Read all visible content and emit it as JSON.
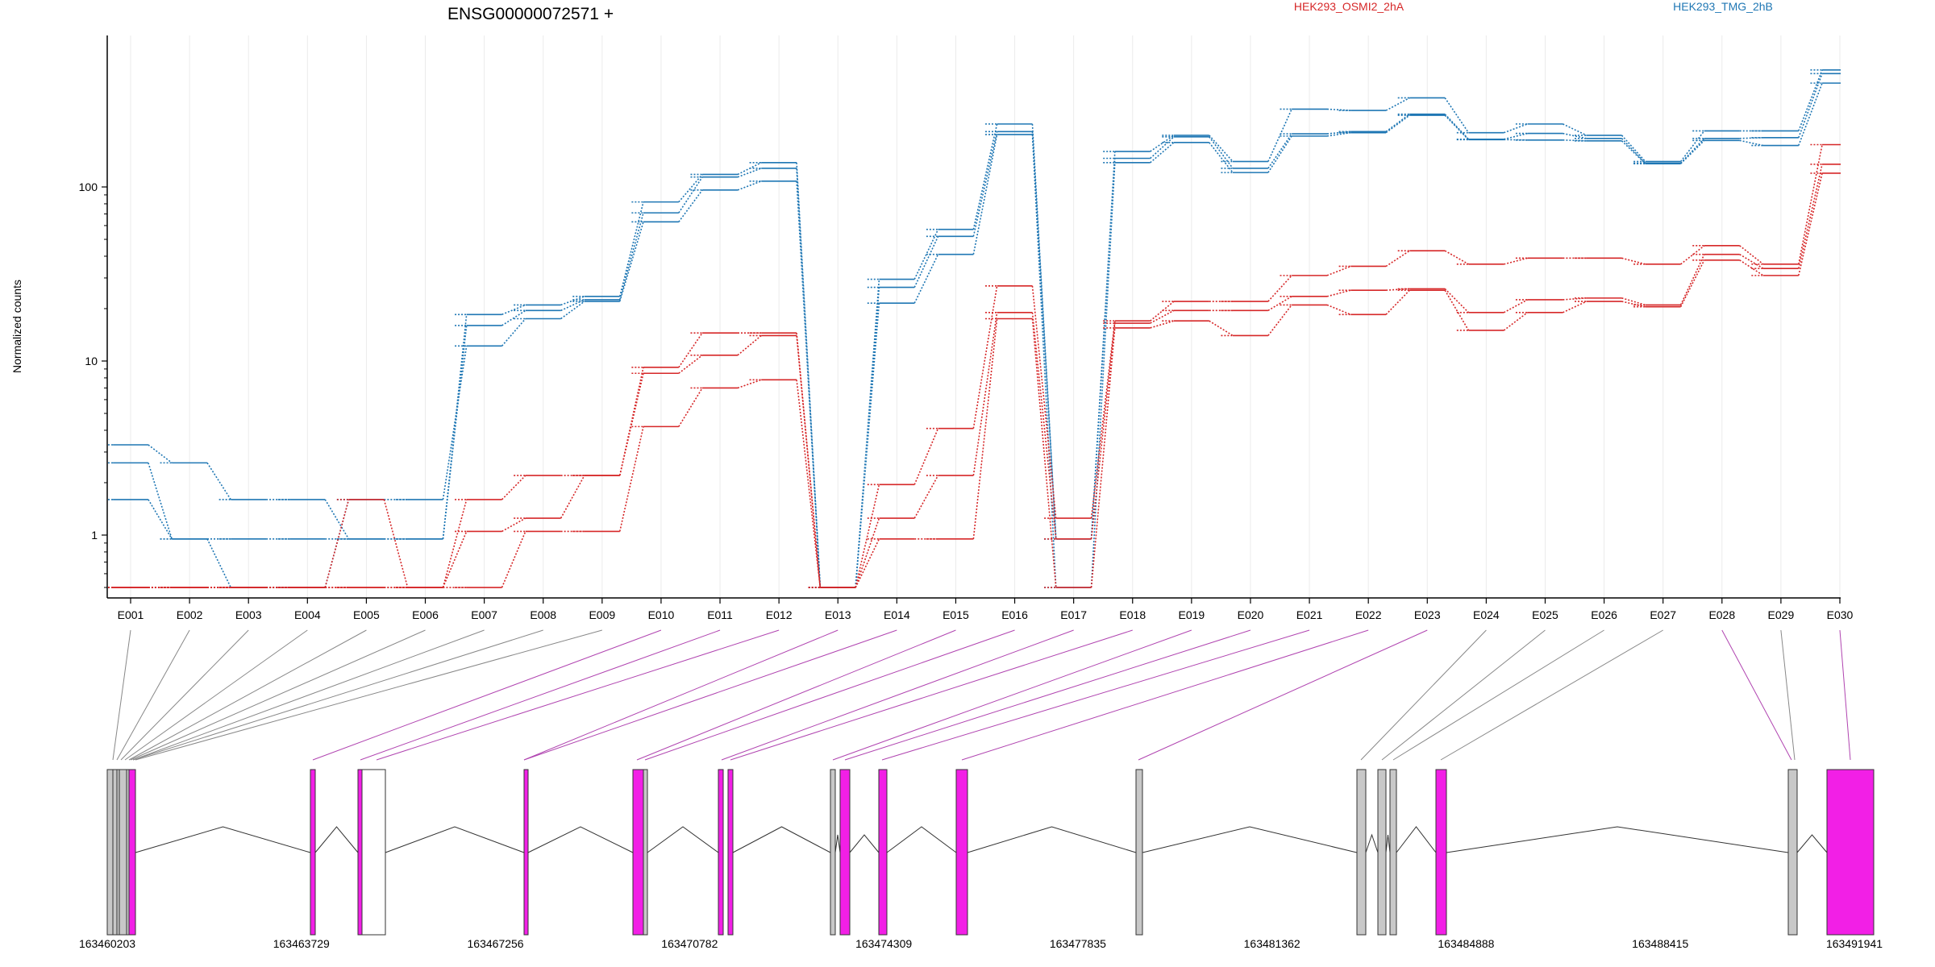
{
  "title": "ENSG00000072571 +",
  "ylabel": "Normalized counts",
  "legend": [
    {
      "name": "HEK293_OSMI2_2hA",
      "color": "#d62728"
    },
    {
      "name": "HEK293_TMG_2hB",
      "color": "#1f77b4"
    }
  ],
  "colors": {
    "exon_highlight": "#f21fe6",
    "exon_plain": "#c8c8c8",
    "exon_empty": "#ffffff",
    "grid": "#ebebeb"
  },
  "chart_data": {
    "type": "line",
    "yscale": "log",
    "ylim": [
      0.5,
      600
    ],
    "yticks": [
      1,
      10,
      100
    ],
    "categories": [
      "E001",
      "E002",
      "E003",
      "E004",
      "E005",
      "E006",
      "E007",
      "E008",
      "E009",
      "E010",
      "E011",
      "E012",
      "E013",
      "E014",
      "E015",
      "E016",
      "E017",
      "E018",
      "E019",
      "E020",
      "E021",
      "E022",
      "E023",
      "E024",
      "E025",
      "E026",
      "E027",
      "E028",
      "E029",
      "E030"
    ],
    "highlighted": [
      "E010",
      "E011",
      "E012",
      "E013",
      "E014",
      "E015",
      "E016",
      "E017",
      "E018",
      "E019",
      "E020",
      "E021",
      "E022",
      "E023",
      "E028",
      "E030"
    ],
    "series": [
      {
        "name": "HEK293_TMG_2hB rep1",
        "group": "HEK293_TMG_2hB",
        "values": [
          3.3,
          2.6,
          1.6,
          1.6,
          0.95,
          0.95,
          18.5,
          21,
          23.5,
          82,
          118,
          138,
          0.5,
          29.5,
          57,
          230,
          0.95,
          160,
          198,
          140,
          280,
          275,
          325,
          205,
          230,
          198,
          140,
          210,
          210,
          470
        ]
      },
      {
        "name": "HEK293_TMG_2hB rep2",
        "group": "HEK293_TMG_2hB",
        "values": [
          2.6,
          0.95,
          0.95,
          0.95,
          0.95,
          0.95,
          16,
          19.5,
          22.5,
          71,
          114,
          128,
          0.5,
          26.5,
          52,
          208,
          0.95,
          146,
          194,
          128,
          202,
          208,
          262,
          188,
          203,
          190,
          137,
          190,
          192,
          448
        ]
      },
      {
        "name": "HEK293_TMG_2hB rep3",
        "group": "HEK293_TMG_2hB",
        "values": [
          1.6,
          0.95,
          0.5,
          0.5,
          1.6,
          1.6,
          12.2,
          17.5,
          22,
          63,
          96,
          108,
          0.5,
          21.5,
          41,
          200,
          0.5,
          138,
          180,
          121,
          196,
          205,
          258,
          187,
          186,
          184,
          136,
          185,
          173,
          395
        ]
      },
      {
        "name": "HEK293_OSMI2_2hA rep1",
        "group": "HEK293_OSMI2_2hA",
        "values": [
          0.5,
          0.5,
          0.5,
          0.5,
          1.6,
          0.5,
          1.6,
          2.2,
          2.2,
          9.2,
          14.5,
          14.5,
          0.5,
          1.95,
          4.1,
          27,
          1.25,
          17,
          22,
          22,
          31,
          35,
          43,
          36,
          39,
          39,
          36,
          46,
          36,
          175
        ]
      },
      {
        "name": "HEK293_OSMI2_2hA rep2",
        "group": "HEK293_OSMI2_2hA",
        "values": [
          0.5,
          0.5,
          0.5,
          0.5,
          0.5,
          0.5,
          1.05,
          1.25,
          2.2,
          8.5,
          10.8,
          14,
          0.5,
          1.25,
          2.2,
          19,
          0.95,
          16.5,
          19.5,
          19.5,
          23.5,
          25.5,
          26,
          19,
          22.5,
          23,
          21,
          41,
          34,
          135
        ]
      },
      {
        "name": "HEK293_OSMI2_2hA rep3",
        "group": "HEK293_OSMI2_2hA",
        "values": [
          0.5,
          0.5,
          0.5,
          0.5,
          0.5,
          0.5,
          0.5,
          1.05,
          1.05,
          4.2,
          7,
          7.8,
          0.5,
          0.95,
          0.95,
          17.5,
          0.5,
          15.5,
          17,
          14,
          21,
          18.5,
          25.5,
          15,
          19,
          22,
          20.5,
          38,
          31,
          120
        ]
      }
    ],
    "genome_ticks": [
      "163460203",
      "163463729",
      "163467256",
      "163470782",
      "163474309",
      "163477835",
      "163481362",
      "163484888",
      "163488415",
      "163491941"
    ]
  }
}
